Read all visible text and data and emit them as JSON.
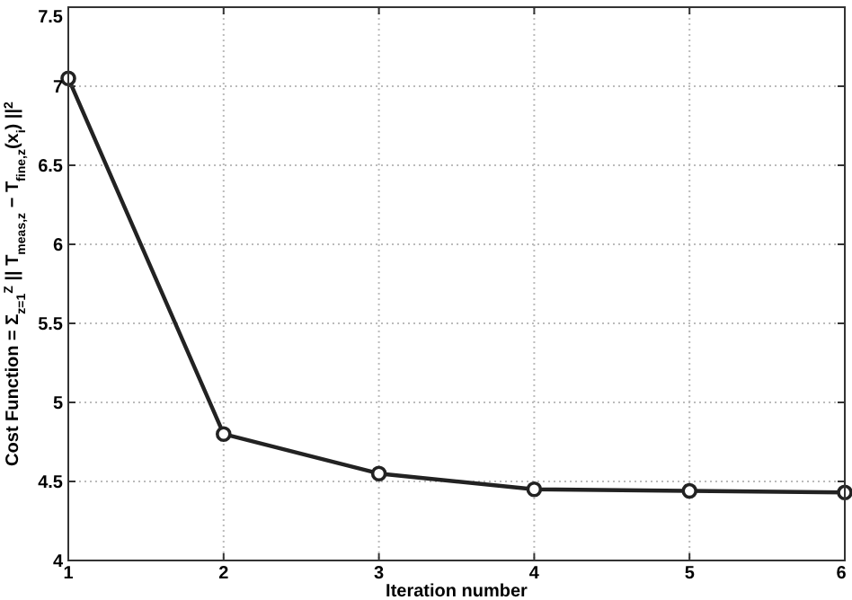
{
  "chart_data": {
    "type": "line",
    "xlabel": "Iteration number",
    "ylabel": "Cost Function = Σ$_{z=1}$$^{Z}$ || T$_{meas,z}$ − T$_{fine,z}$(x$_{i}$) ||$^{2}$",
    "x": [
      1,
      2,
      3,
      4,
      5,
      6
    ],
    "series": [
      {
        "color": "#222222",
        "values": [
          7.05,
          4.8,
          4.55,
          4.45,
          4.44,
          4.43
        ]
      }
    ],
    "xlim": [
      1,
      6
    ],
    "xticks": [
      1,
      2,
      3,
      4,
      5,
      6
    ],
    "ylim": [
      4,
      7.5
    ],
    "yticks": [
      4,
      4.5,
      5,
      5.5,
      6,
      6.5,
      7,
      7.5
    ],
    "grid": true,
    "marker": "circle",
    "line_style": "solid"
  }
}
